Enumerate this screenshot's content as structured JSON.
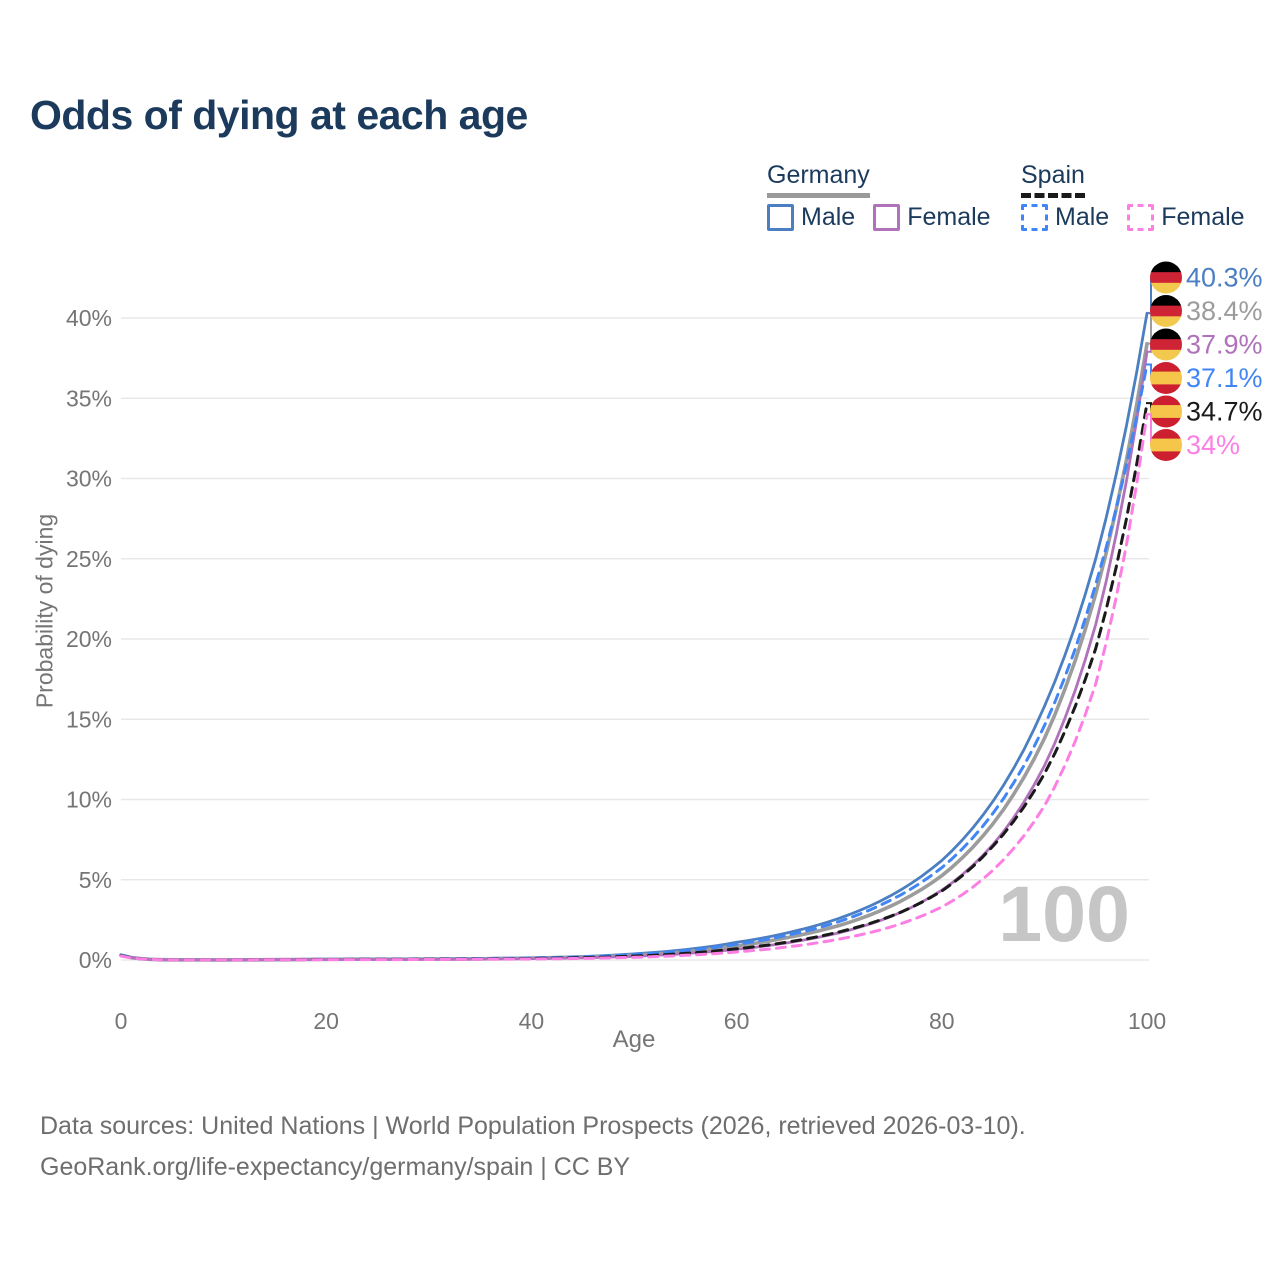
{
  "title": "Odds of dying at each age",
  "legend": {
    "germany": {
      "label": "Germany",
      "male_label": "Male",
      "female_label": "Female"
    },
    "spain": {
      "label": "Spain",
      "male_label": "Male",
      "female_label": "Female"
    }
  },
  "watermark": "100",
  "footer": {
    "line1": "Data sources: United Nations | World Population Prospects (2026, retrieved 2026-03-10).",
    "line2": "GeoRank.org/life-expectancy/germany/spain | CC BY"
  },
  "chart_data": {
    "type": "line",
    "title": "Odds of dying at each age",
    "xlabel": "Age",
    "ylabel": "Probability of dying",
    "unit": "%",
    "xlim": [
      0,
      100
    ],
    "ylim_pct": [
      0,
      43
    ],
    "x_ticks": [
      0,
      20,
      40,
      60,
      80,
      100
    ],
    "y_ticks_pct": [
      0,
      5,
      10,
      15,
      20,
      25,
      30,
      35,
      40
    ],
    "grid": "horizontal",
    "legend_position": "top-right",
    "hover_age": 100,
    "ages": [
      0,
      5,
      10,
      15,
      20,
      25,
      30,
      35,
      40,
      45,
      50,
      55,
      60,
      65,
      70,
      75,
      80,
      85,
      90,
      95,
      100
    ],
    "series": [
      {
        "id": "germany-male",
        "name": "Germany Male",
        "country": "Germany",
        "sex": "Male",
        "style": "solid",
        "color": "#4c7fc1",
        "flag": "DE",
        "end_value": 40.3,
        "end_label": "40.3%",
        "values_pct": [
          0.33,
          0.012,
          0.01,
          0.025,
          0.06,
          0.065,
          0.07,
          0.095,
          0.14,
          0.22,
          0.38,
          0.65,
          1.1,
          1.7,
          2.6,
          4.0,
          6.2,
          9.9,
          15.8,
          25.0,
          40.3
        ]
      },
      {
        "id": "germany-both",
        "name": "Germany (both sexes)",
        "country": "Germany",
        "sex": "Both",
        "style": "solid",
        "color": "#9c9c9c",
        "flag": "DE",
        "end_value": 38.4,
        "end_label": "38.4%",
        "values_pct": [
          0.3,
          0.01,
          0.009,
          0.02,
          0.045,
          0.05,
          0.055,
          0.075,
          0.11,
          0.18,
          0.3,
          0.52,
          0.88,
          1.4,
          2.15,
          3.35,
          5.25,
          8.5,
          13.8,
          22.8,
          38.4
        ]
      },
      {
        "id": "germany-female",
        "name": "Germany Female",
        "country": "Germany",
        "sex": "Female",
        "style": "solid",
        "color": "#b072ba",
        "flag": "DE",
        "end_value": 37.9,
        "end_label": "37.9%",
        "values_pct": [
          0.28,
          0.009,
          0.008,
          0.016,
          0.03,
          0.034,
          0.04,
          0.055,
          0.085,
          0.14,
          0.23,
          0.4,
          0.67,
          1.08,
          1.7,
          2.7,
          4.35,
          7.2,
          12.1,
          20.9,
          37.9
        ]
      },
      {
        "id": "spain-male",
        "name": "Spain Male",
        "country": "Spain",
        "sex": "Male",
        "style": "dashed",
        "color": "#4286f5",
        "flag": "ES",
        "end_value": 37.1,
        "end_label": "37.1%",
        "values_pct": [
          0.3,
          0.01,
          0.009,
          0.022,
          0.05,
          0.055,
          0.062,
          0.085,
          0.125,
          0.2,
          0.34,
          0.58,
          0.98,
          1.55,
          2.4,
          3.72,
          5.75,
          9.15,
          14.6,
          23.4,
          37.1
        ]
      },
      {
        "id": "spain-both",
        "name": "Spain (both sexes)",
        "country": "Spain",
        "sex": "Both",
        "style": "dashed",
        "color": "#1a1a1a",
        "flag": "ES",
        "end_value": 34.7,
        "end_label": "34.7%",
        "values_pct": [
          0.27,
          0.009,
          0.008,
          0.016,
          0.033,
          0.036,
          0.042,
          0.058,
          0.088,
          0.145,
          0.24,
          0.41,
          0.7,
          1.12,
          1.75,
          2.72,
          4.3,
          7.1,
          11.6,
          19.4,
          34.7
        ]
      },
      {
        "id": "spain-female",
        "name": "Spain Female",
        "country": "Spain",
        "sex": "Female",
        "style": "dashed",
        "color": "#fc80e4",
        "flag": "ES",
        "end_value": 34.0,
        "end_label": "34%",
        "values_pct": [
          0.25,
          0.008,
          0.007,
          0.012,
          0.022,
          0.026,
          0.03,
          0.042,
          0.062,
          0.1,
          0.17,
          0.29,
          0.5,
          0.82,
          1.3,
          2.05,
          3.3,
          5.6,
          9.6,
          17.2,
          34.0
        ]
      }
    ],
    "flag_colors": {
      "DE": [
        "#000000",
        "#cf2336",
        "#f2c84d"
      ],
      "ES": [
        "#cc1f30",
        "#f5c64a",
        "#cc1f30"
      ]
    },
    "flag_stripe_fractions": {
      "DE": [
        0.333,
        0.333,
        0.334
      ],
      "ES": [
        0.3,
        0.4,
        0.3
      ]
    },
    "colors": {
      "grid": "#e8e8e8",
      "axis_text": "#757575",
      "watermark": "#c6c6c6",
      "title": "#1b3a5c"
    }
  }
}
